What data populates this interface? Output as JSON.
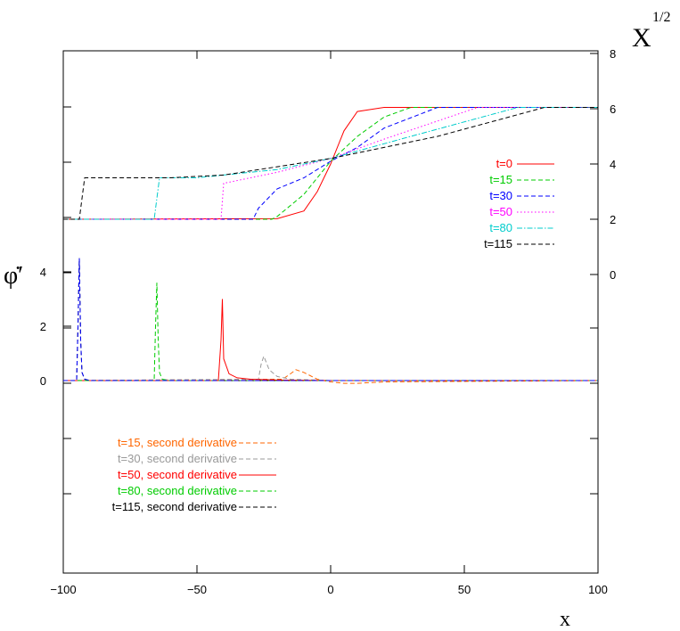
{
  "chart_data": {
    "type": "line",
    "xlabel": "x",
    "ylabel_left": "φ̇′",
    "ylabel_right": "X",
    "ylabel_right_sup": "1/2",
    "x_range": [
      -100,
      100
    ],
    "x_ticks": [
      -100,
      -50,
      0,
      50,
      100
    ],
    "left_axis_ticks": [
      0,
      2,
      4
    ],
    "right_axis_ticks": [
      0,
      2,
      4,
      6,
      8
    ],
    "upper_panel": {
      "axis": "right",
      "legend_position": "right",
      "series": [
        {
          "name": "t=0",
          "color": "#ff0000",
          "dash": "solid",
          "x": [
            -100,
            -20,
            -10,
            -5,
            0,
            5,
            10,
            20,
            100
          ],
          "y": [
            2.0,
            2.02,
            2.3,
            3.0,
            4.0,
            5.2,
            5.9,
            6.05,
            6.05
          ]
        },
        {
          "name": "t=15",
          "color": "#00cc00",
          "dash": "dashed",
          "x": [
            -100,
            -22,
            -20,
            -10,
            0,
            10,
            20,
            30,
            100
          ],
          "y": [
            2.0,
            2.0,
            2.1,
            2.9,
            4.1,
            5.0,
            5.7,
            6.05,
            6.05
          ]
        },
        {
          "name": "t=30",
          "color": "#0000ff",
          "dash": "dashed",
          "x": [
            -100,
            -29,
            -27,
            -20,
            -10,
            0,
            10,
            20,
            40,
            100
          ],
          "y": [
            2.0,
            2.0,
            2.4,
            3.1,
            3.5,
            4.1,
            4.6,
            5.3,
            6.05,
            6.05
          ]
        },
        {
          "name": "t=50",
          "color": "#ff00ff",
          "dash": "dotted",
          "x": [
            -100,
            -41,
            -40,
            -30,
            -20,
            0,
            20,
            55,
            100
          ],
          "y": [
            2.0,
            2.0,
            3.3,
            3.5,
            3.7,
            4.2,
            4.9,
            6.05,
            6.05
          ]
        },
        {
          "name": "t=80",
          "color": "#00cccc",
          "dash": "dashdot",
          "x": [
            -100,
            -66,
            -64,
            -50,
            -20,
            0,
            30,
            70,
            100
          ],
          "y": [
            2.0,
            2.0,
            3.5,
            3.5,
            3.8,
            4.2,
            5.0,
            6.05,
            6.05
          ]
        },
        {
          "name": "t=115",
          "color": "#000000",
          "dash": "dashed",
          "x": [
            -100,
            -94,
            -92,
            -60,
            -40,
            0,
            40,
            80,
            100
          ],
          "y": [
            2.0,
            2.0,
            3.5,
            3.5,
            3.6,
            4.2,
            5.0,
            6.05,
            6.05
          ]
        }
      ]
    },
    "lower_panel": {
      "axis": "left",
      "legend_position": "bottom-left",
      "series": [
        {
          "name": "t=15, second derivative",
          "color": "#ff6600",
          "dash": "dashed",
          "x": [
            -100,
            -18,
            -15,
            -13,
            -10,
            -5,
            0,
            5,
            10,
            20,
            100
          ],
          "y": [
            0,
            0.05,
            0.25,
            0.4,
            0.3,
            0.05,
            -0.05,
            -0.1,
            -0.1,
            -0.05,
            0
          ]
        },
        {
          "name": "t=30, second derivative",
          "color": "#999999",
          "dash": "dashed",
          "x": [
            -100,
            -27,
            -26,
            -25,
            -23,
            -20,
            -15,
            0,
            20,
            100
          ],
          "y": [
            0,
            0.05,
            0.6,
            0.9,
            0.4,
            0.15,
            0.05,
            0,
            0,
            0
          ]
        },
        {
          "name": "t=50, second derivative",
          "color": "#ff0000",
          "dash": "solid",
          "x": [
            -100,
            -42,
            -41,
            -40.5,
            -40,
            -38,
            -35,
            -30,
            -20,
            0,
            20,
            100
          ],
          "y": [
            0,
            0,
            1.5,
            3.0,
            0.8,
            0.25,
            0.1,
            0.05,
            0.02,
            0,
            0,
            0
          ]
        },
        {
          "name": "t=80, second derivative",
          "color": "#00cc00",
          "dash": "dashed",
          "x": [
            -100,
            -66,
            -65.5,
            -65,
            -64.5,
            -64,
            -63,
            -60,
            100
          ],
          "y": [
            0,
            0,
            2.0,
            3.6,
            1.5,
            0.3,
            0.05,
            0,
            0
          ]
        },
        {
          "name": "t=115, second derivative",
          "color": "#000000",
          "dash": "dashed",
          "x": [
            -100,
            -95,
            -94.5,
            -94,
            -93.5,
            -93,
            -92,
            -90,
            100
          ],
          "y": [
            0,
            0,
            2.0,
            4.5,
            1.5,
            0.3,
            0.05,
            0,
            0
          ]
        },
        {
          "name": "",
          "color": "#0000ff",
          "dash": "dashed",
          "x": [
            -100,
            -95,
            -94.5,
            -94,
            -93.5,
            -93,
            -92,
            -90,
            100
          ],
          "y": [
            0,
            0,
            2.0,
            4.5,
            1.5,
            0.3,
            0.05,
            0,
            0
          ]
        }
      ]
    }
  }
}
